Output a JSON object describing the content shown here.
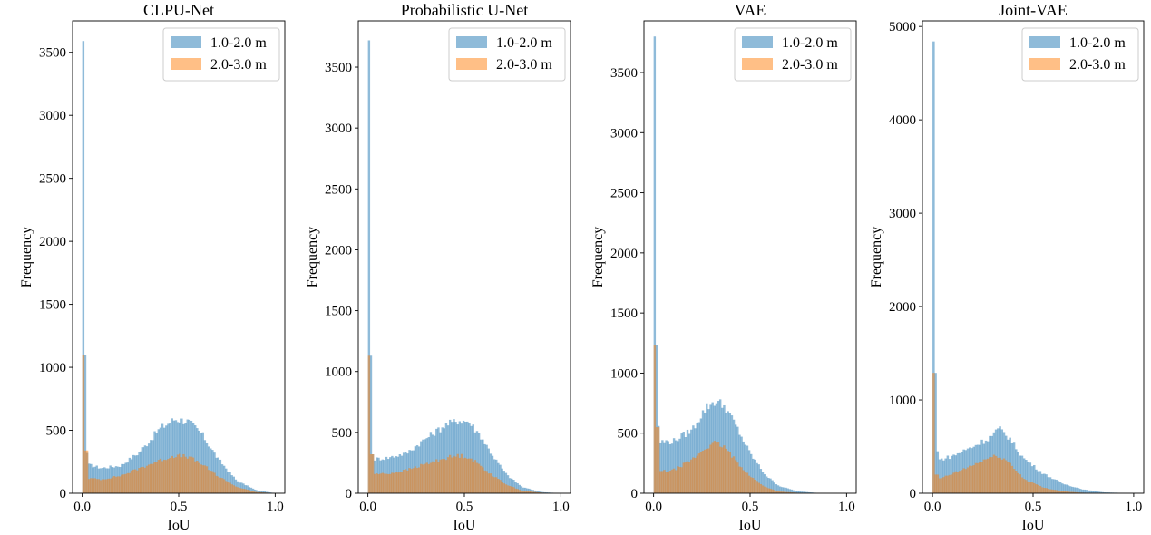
{
  "figure": {
    "background": "#ffffff"
  },
  "chart_data": [
    {
      "type": "histogram",
      "title": "CLPU-Net",
      "xlabel": "IoU",
      "ylabel": "Frequency",
      "xlim": [
        -0.05,
        1.05
      ],
      "ylim": [
        0,
        3750
      ],
      "xticks": [
        "0.0",
        "0.5",
        "1.0"
      ],
      "yticks": [
        "0",
        "500",
        "1000",
        "1500",
        "2000",
        "2500",
        "3000",
        "3500"
      ],
      "legend": {
        "placement": "top-right"
      },
      "series": [
        {
          "name": "1.0-2.0 m",
          "color": "#1f77b4",
          "opacity": 0.5,
          "spike": [
            3590,
            1100
          ],
          "start": 320,
          "curve": [
            [
              0.0,
              320
            ],
            [
              0.02,
              230
            ],
            [
              0.1,
              200
            ],
            [
              0.2,
              220
            ],
            [
              0.3,
              330
            ],
            [
              0.4,
              510
            ],
            [
              0.48,
              590
            ],
            [
              0.55,
              570
            ],
            [
              0.62,
              470
            ],
            [
              0.7,
              280
            ],
            [
              0.8,
              100
            ],
            [
              0.9,
              25
            ],
            [
              1.0,
              0
            ]
          ]
        },
        {
          "name": "2.0-3.0 m",
          "color": "#ff7f0e",
          "opacity": 0.5,
          "spike": [
            1100,
            340
          ],
          "start": 340,
          "curve": [
            [
              0.0,
              340
            ],
            [
              0.02,
              120
            ],
            [
              0.1,
              110
            ],
            [
              0.2,
              140
            ],
            [
              0.3,
              200
            ],
            [
              0.4,
              260
            ],
            [
              0.48,
              300
            ],
            [
              0.55,
              290
            ],
            [
              0.62,
              230
            ],
            [
              0.7,
              140
            ],
            [
              0.8,
              50
            ],
            [
              0.9,
              10
            ],
            [
              1.0,
              0
            ]
          ]
        }
      ]
    },
    {
      "type": "histogram",
      "title": "Probabilistic U-Net",
      "xlabel": "IoU",
      "ylabel": "Frequency",
      "xlim": [
        -0.05,
        1.05
      ],
      "ylim": [
        0,
        3880
      ],
      "xticks": [
        "0.0",
        "0.5",
        "1.0"
      ],
      "yticks": [
        "0",
        "500",
        "1000",
        "1500",
        "2000",
        "2500",
        "3000",
        "3500"
      ],
      "legend": {
        "placement": "top-right"
      },
      "series": [
        {
          "name": "1.0-2.0 m",
          "color": "#1f77b4",
          "opacity": 0.5,
          "spike": [
            3720,
            1130
          ],
          "start": 320,
          "curve": [
            [
              0.0,
              320
            ],
            [
              0.02,
              280
            ],
            [
              0.1,
              290
            ],
            [
              0.2,
              330
            ],
            [
              0.3,
              450
            ],
            [
              0.4,
              560
            ],
            [
              0.47,
              600
            ],
            [
              0.52,
              590
            ],
            [
              0.58,
              480
            ],
            [
              0.65,
              300
            ],
            [
              0.72,
              150
            ],
            [
              0.8,
              50
            ],
            [
              0.9,
              10
            ],
            [
              1.0,
              0
            ]
          ]
        },
        {
          "name": "2.0-3.0 m",
          "color": "#ff7f0e",
          "opacity": 0.5,
          "spike": [
            1130,
            320
          ],
          "start": 320,
          "curve": [
            [
              0.0,
              320
            ],
            [
              0.02,
              160
            ],
            [
              0.1,
              160
            ],
            [
              0.2,
              190
            ],
            [
              0.3,
              240
            ],
            [
              0.4,
              290
            ],
            [
              0.47,
              310
            ],
            [
              0.52,
              300
            ],
            [
              0.58,
              230
            ],
            [
              0.65,
              140
            ],
            [
              0.72,
              70
            ],
            [
              0.8,
              20
            ],
            [
              0.9,
              5
            ],
            [
              1.0,
              0
            ]
          ]
        }
      ]
    },
    {
      "type": "histogram",
      "title": "VAE",
      "xlabel": "IoU",
      "ylabel": "Frequency",
      "xlim": [
        -0.05,
        1.05
      ],
      "ylim": [
        0,
        3930
      ],
      "xticks": [
        "0.0",
        "0.5",
        "1.0"
      ],
      "yticks": [
        "0",
        "500",
        "1000",
        "1500",
        "2000",
        "2500",
        "3000",
        "3500"
      ],
      "legend": {
        "placement": "top-right"
      },
      "series": [
        {
          "name": "1.0-2.0 m",
          "color": "#1f77b4",
          "opacity": 0.5,
          "spike": [
            3800,
            1230
          ],
          "start": 560,
          "curve": [
            [
              0.0,
              560
            ],
            [
              0.02,
              430
            ],
            [
              0.1,
              430
            ],
            [
              0.2,
              530
            ],
            [
              0.27,
              710
            ],
            [
              0.32,
              770
            ],
            [
              0.37,
              720
            ],
            [
              0.42,
              580
            ],
            [
              0.5,
              330
            ],
            [
              0.58,
              150
            ],
            [
              0.65,
              60
            ],
            [
              0.75,
              15
            ],
            [
              0.85,
              3
            ],
            [
              1.0,
              0
            ]
          ]
        },
        {
          "name": "2.0-3.0 m",
          "color": "#ff7f0e",
          "opacity": 0.5,
          "spike": [
            1230,
            550
          ],
          "start": 550,
          "curve": [
            [
              0.0,
              550
            ],
            [
              0.02,
              180
            ],
            [
              0.1,
              190
            ],
            [
              0.2,
              280
            ],
            [
              0.27,
              380
            ],
            [
              0.32,
              420
            ],
            [
              0.37,
              380
            ],
            [
              0.42,
              280
            ],
            [
              0.5,
              140
            ],
            [
              0.58,
              50
            ],
            [
              0.65,
              15
            ],
            [
              0.75,
              3
            ],
            [
              1.0,
              0
            ]
          ]
        }
      ]
    },
    {
      "type": "histogram",
      "title": "Joint-VAE",
      "xlabel": "IoU",
      "ylabel": "Frequency",
      "xlim": [
        -0.05,
        1.05
      ],
      "ylim": [
        0,
        5060
      ],
      "xticks": [
        "0.0",
        "0.5",
        "1.0"
      ],
      "yticks": [
        "0",
        "1000",
        "2000",
        "3000",
        "4000",
        "5000"
      ],
      "legend": {
        "placement": "top-right"
      },
      "series": [
        {
          "name": "1.0-2.0 m",
          "color": "#1f77b4",
          "opacity": 0.5,
          "spike": [
            4840,
            1290
          ],
          "start": 450,
          "curve": [
            [
              0.0,
              450
            ],
            [
              0.02,
              350
            ],
            [
              0.1,
              400
            ],
            [
              0.2,
              500
            ],
            [
              0.28,
              590
            ],
            [
              0.33,
              690
            ],
            [
              0.38,
              600
            ],
            [
              0.45,
              380
            ],
            [
              0.55,
              210
            ],
            [
              0.65,
              100
            ],
            [
              0.75,
              40
            ],
            [
              0.85,
              10
            ],
            [
              1.0,
              0
            ]
          ]
        },
        {
          "name": "2.0-3.0 m",
          "color": "#ff7f0e",
          "opacity": 0.5,
          "spike": [
            1290,
            200
          ],
          "start": 200,
          "curve": [
            [
              0.0,
              200
            ],
            [
              0.02,
              140
            ],
            [
              0.1,
              210
            ],
            [
              0.2,
              300
            ],
            [
              0.28,
              380
            ],
            [
              0.33,
              400
            ],
            [
              0.38,
              330
            ],
            [
              0.45,
              160
            ],
            [
              0.55,
              60
            ],
            [
              0.65,
              20
            ],
            [
              0.75,
              5
            ],
            [
              1.0,
              0
            ]
          ]
        }
      ]
    }
  ]
}
